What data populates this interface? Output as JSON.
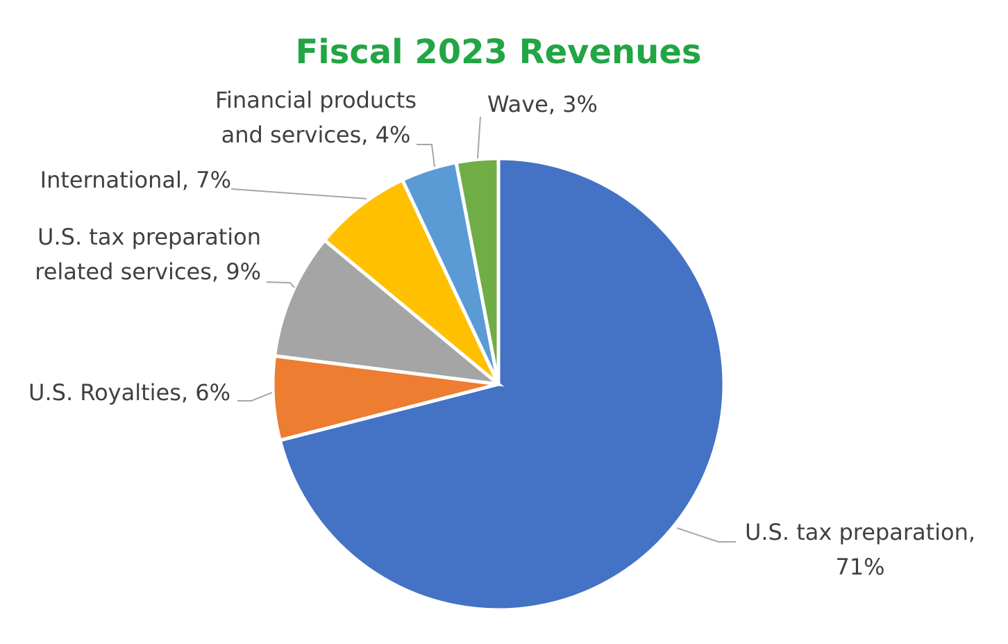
{
  "chart_data": {
    "type": "pie",
    "title": "Fiscal 2023 Revenues",
    "values": [
      71,
      6,
      9,
      7,
      4,
      3
    ],
    "value_labels": [
      [
        "U.S. tax preparation,",
        "71%"
      ],
      [
        "U.S. Royalties, 6%"
      ],
      [
        "U.S. tax preparation",
        "related services, 9%"
      ],
      [
        "International, 7%"
      ],
      [
        "Financial products",
        "and services, 4%"
      ],
      [
        "Wave, 3%"
      ]
    ],
    "colors": [
      "#4472c4",
      "#ed7d31",
      "#a5a5a5",
      "#ffc000",
      "#5b9bd5",
      "#70ad47"
    ]
  }
}
